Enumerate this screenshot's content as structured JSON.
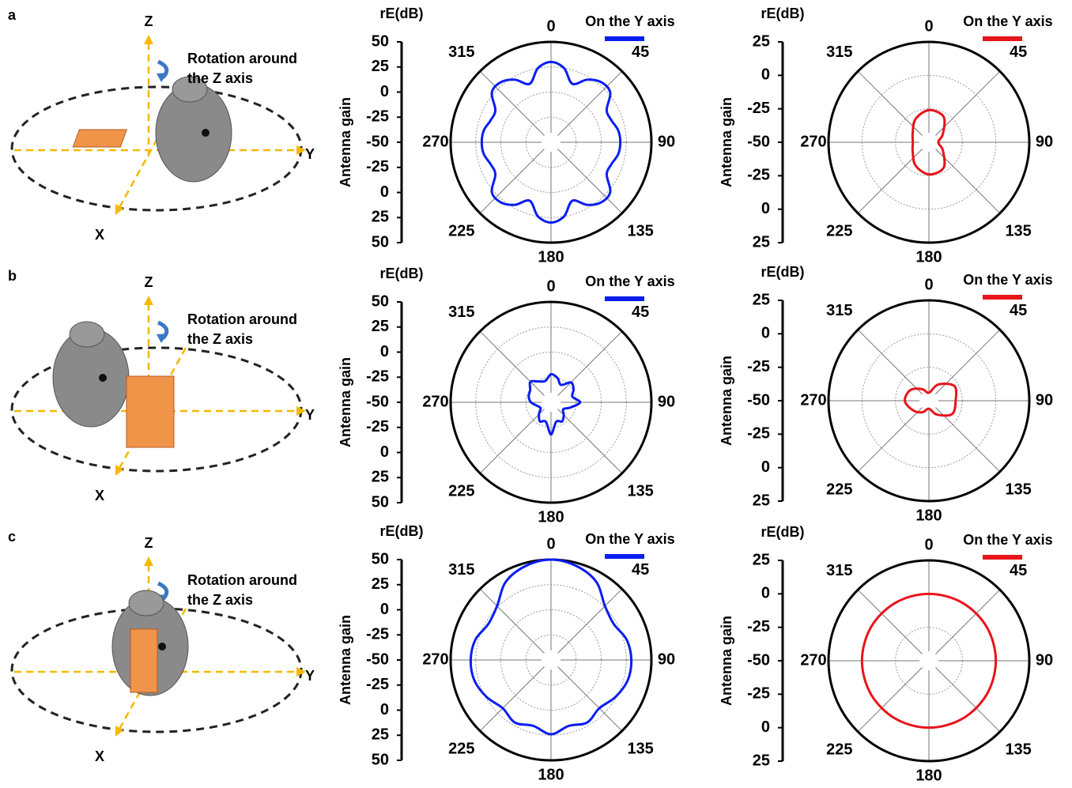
{
  "diagrams": [
    {
      "panel_label": "a",
      "z_label": "Z",
      "rotation_label": [
        "Rotation around",
        "the Z axis"
      ],
      "y_label": "Y",
      "x_label": "X"
    },
    {
      "panel_label": "b",
      "z_label": "Z",
      "rotation_label": [
        "Rotation around",
        "the Z axis"
      ],
      "y_label": "Y",
      "x_label": "X"
    },
    {
      "panel_label": "c",
      "z_label": "Z",
      "rotation_label": [
        "Rotation around",
        "the Z axis"
      ],
      "y_label": "Y",
      "x_label": "X"
    }
  ],
  "chart_data": [
    {
      "type": "polar",
      "title": "rE(dB)",
      "ylabel": "Antenna gain",
      "rlim": [
        -50,
        50
      ],
      "rticks": [
        -50,
        -25,
        0,
        25,
        50
      ],
      "thetaticks": [
        0,
        45,
        90,
        135,
        180,
        225,
        270,
        315
      ],
      "grid": true,
      "series": [
        {
          "name": "On the Y axis",
          "color": "#0a1ef0",
          "theta": [
            0,
            10,
            20,
            30,
            40,
            50,
            60,
            70,
            80,
            90,
            100,
            110,
            120,
            130,
            140,
            150,
            160,
            170,
            180,
            190,
            200,
            210,
            220,
            230,
            240,
            250,
            260,
            270,
            280,
            290,
            300,
            310,
            320,
            330,
            340,
            350
          ],
          "r": [
            30,
            25,
            12,
            22,
            28,
            27,
            14,
            14,
            18,
            19,
            18,
            14,
            14,
            27,
            28,
            22,
            12,
            25,
            30,
            25,
            12,
            22,
            28,
            27,
            14,
            14,
            18,
            19,
            18,
            14,
            14,
            27,
            28,
            22,
            12,
            25
          ]
        }
      ]
    },
    {
      "type": "polar",
      "title": "rE(dB)",
      "ylabel": "Antenna gain",
      "rlim": [
        -50,
        25
      ],
      "rticks": [
        -50,
        -25,
        0,
        25
      ],
      "thetaticks": [
        0,
        45,
        90,
        135,
        180,
        225,
        270,
        315
      ],
      "grid": true,
      "series": [
        {
          "name": "On the Y axis",
          "color": "#e8141b",
          "theta": [
            0,
            30,
            60,
            90,
            120,
            150,
            180,
            210,
            240,
            270,
            300,
            330
          ],
          "r": [
            -26,
            -28,
            -38,
            -43,
            -38,
            -28,
            -26,
            -30,
            -36,
            -38,
            -36,
            -30
          ]
        }
      ]
    },
    {
      "type": "polar",
      "title": "rE(dB)",
      "ylabel": "Antenna gain",
      "rlim": [
        -50,
        50
      ],
      "rticks": [
        -50,
        -25,
        0,
        25,
        50
      ],
      "thetaticks": [
        0,
        45,
        90,
        135,
        180,
        225,
        270,
        315
      ],
      "grid": true,
      "series": [
        {
          "name": "On the Y axis",
          "color": "#0a1ef0",
          "theta": [
            0,
            15,
            30,
            45,
            60,
            75,
            90,
            105,
            120,
            135,
            150,
            165,
            180,
            195,
            210,
            225,
            240,
            255,
            270,
            285,
            300,
            315,
            330,
            345
          ],
          "r": [
            -22,
            -25,
            -30,
            -22,
            -24,
            -28,
            -21,
            -30,
            -36,
            -32,
            -28,
            -30,
            -18,
            -30,
            -28,
            -33,
            -38,
            -36,
            -30,
            -27,
            -26,
            -21,
            -26,
            -28
          ]
        }
      ]
    },
    {
      "type": "polar",
      "title": "rE(dB)",
      "ylabel": "Antenna gain",
      "rlim": [
        -50,
        25
      ],
      "rticks": [
        -50,
        -25,
        0,
        25
      ],
      "thetaticks": [
        0,
        45,
        90,
        135,
        180,
        225,
        270,
        315
      ],
      "grid": true,
      "series": [
        {
          "name": "On the Y axis",
          "color": "#e8141b",
          "theta": [
            0,
            30,
            60,
            90,
            120,
            150,
            180,
            210,
            240,
            270,
            300,
            330
          ],
          "r": [
            -44,
            -36,
            -28,
            -30,
            -30,
            -38,
            -44,
            -40,
            -36,
            -32,
            -34,
            -40
          ]
        }
      ]
    },
    {
      "type": "polar",
      "title": "rE(dB)",
      "ylabel": "Antenna gain",
      "rlim": [
        -50,
        50
      ],
      "rticks": [
        -50,
        -25,
        0,
        25,
        50
      ],
      "thetaticks": [
        0,
        45,
        90,
        135,
        180,
        225,
        270,
        315
      ],
      "grid": true,
      "series": [
        {
          "name": "On the Y axis",
          "color": "#0a1ef0",
          "theta": [
            0,
            15,
            30,
            45,
            60,
            75,
            90,
            105,
            120,
            135,
            150,
            165,
            180,
            195,
            210,
            225,
            240,
            255,
            270,
            285,
            300,
            315,
            330,
            345
          ],
          "r": [
            50,
            47,
            40,
            26,
            22,
            28,
            30,
            29,
            24,
            18,
            22,
            18,
            24,
            18,
            22,
            18,
            24,
            29,
            30,
            28,
            22,
            26,
            40,
            47
          ]
        }
      ]
    },
    {
      "type": "polar",
      "title": "rE(dB)",
      "ylabel": "Antenna gain",
      "rlim": [
        -50,
        25
      ],
      "rticks": [
        -50,
        -25,
        0,
        25
      ],
      "thetaticks": [
        0,
        45,
        90,
        135,
        180,
        225,
        270,
        315
      ],
      "grid": true,
      "series": [
        {
          "name": "On the Y axis",
          "color": "#e8141b",
          "theta": [
            0,
            30,
            60,
            90,
            120,
            150,
            180,
            210,
            240,
            270,
            300,
            330
          ],
          "r": [
            0,
            0,
            0,
            0,
            0,
            0,
            0,
            0,
            0,
            0,
            0,
            0
          ]
        }
      ]
    }
  ]
}
